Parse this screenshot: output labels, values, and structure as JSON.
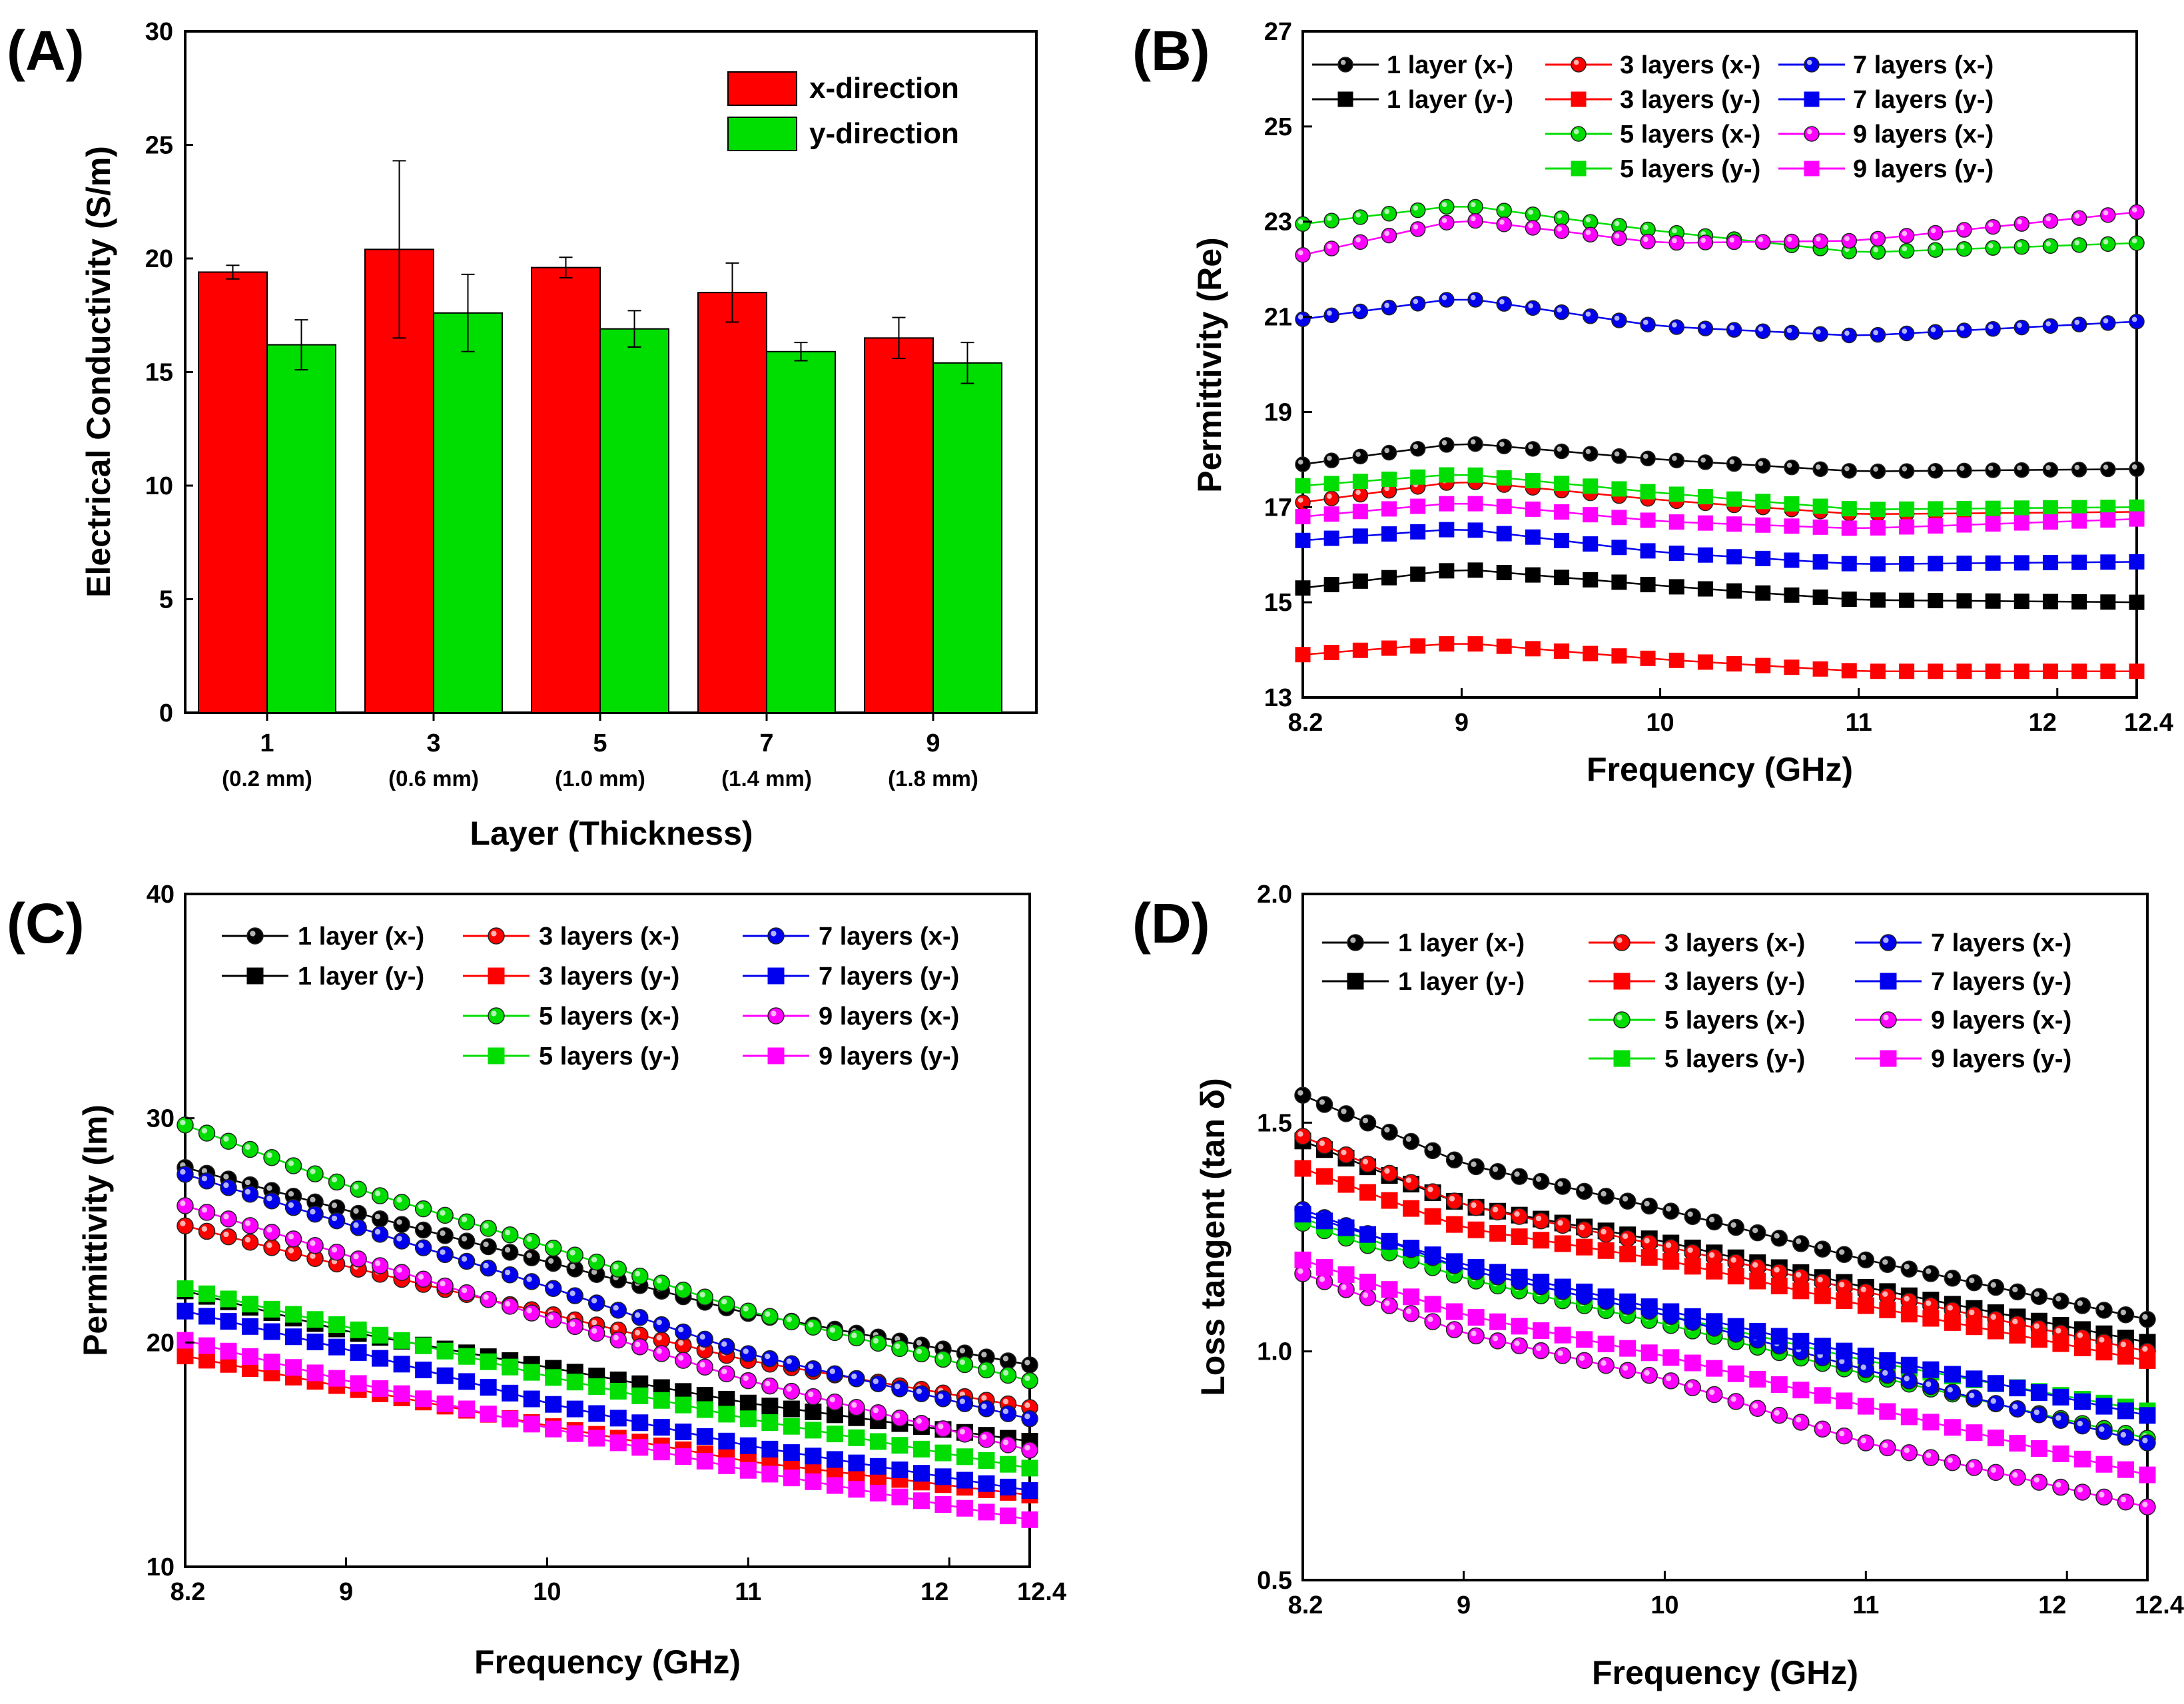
{
  "chart_data": [
    {
      "panel": "(A)",
      "type": "bar",
      "xlabel": "Layer (Thickness)",
      "ylabel": "Electrical Conductivity (S/m)",
      "ylim": [
        0,
        30
      ],
      "yticks": [
        0,
        5,
        10,
        15,
        20,
        25,
        30
      ],
      "categories": [
        "1",
        "3",
        "5",
        "7",
        "9"
      ],
      "category_sublabels": [
        "(0.2 mm)",
        "(0.6 mm)",
        "(1.0 mm)",
        "(1.4 mm)",
        "(1.8 mm)"
      ],
      "legend_position": "top-right",
      "series": [
        {
          "name": "x-direction",
          "color": "#ff0000",
          "values": [
            19.4,
            20.4,
            19.6,
            18.5,
            16.5
          ],
          "errors": [
            0.3,
            3.9,
            0.45,
            1.3,
            0.9
          ]
        },
        {
          "name": "y-direction",
          "color": "#00dd00",
          "values": [
            16.2,
            17.6,
            16.9,
            15.9,
            15.4
          ],
          "errors": [
            1.1,
            1.7,
            0.8,
            0.4,
            0.9
          ]
        }
      ]
    },
    {
      "panel": "(B)",
      "type": "line",
      "xlabel": "Frequency (GHz)",
      "ylabel": "Permittivity (Re)",
      "xlim": [
        8.2,
        12.4
      ],
      "ylim": [
        13,
        27
      ],
      "xticks": [
        "8.2",
        "9",
        "10",
        "11",
        "12",
        "12.4"
      ],
      "yticks": [
        13,
        15,
        17,
        19,
        21,
        23,
        25,
        27
      ],
      "legend_position": "top",
      "series": [
        {
          "name": "1 layer (x-)",
          "color": "#000000",
          "marker": "circle",
          "points": [
            [
              8.2,
              17.9
            ],
            [
              9.0,
              18.35
            ],
            [
              10.0,
              18.0
            ],
            [
              11.0,
              17.75
            ],
            [
              12.4,
              17.8
            ]
          ]
        },
        {
          "name": "1 layer (y-)",
          "color": "#000000",
          "marker": "square",
          "points": [
            [
              8.2,
              15.3
            ],
            [
              9.0,
              15.7
            ],
            [
              10.0,
              15.35
            ],
            [
              11.0,
              15.05
            ],
            [
              12.4,
              15.0
            ]
          ]
        },
        {
          "name": "3 layers (x-)",
          "color": "#ff0000",
          "marker": "circle",
          "points": [
            [
              8.2,
              17.1
            ],
            [
              9.0,
              17.55
            ],
            [
              10.0,
              17.15
            ],
            [
              11.0,
              16.85
            ],
            [
              12.4,
              16.9
            ]
          ]
        },
        {
          "name": "3 layers (y-)",
          "color": "#ff0000",
          "marker": "square",
          "points": [
            [
              8.2,
              13.9
            ],
            [
              9.0,
              14.15
            ],
            [
              10.0,
              13.8
            ],
            [
              11.0,
              13.55
            ],
            [
              12.4,
              13.55
            ]
          ]
        },
        {
          "name": "5 layers (x-)",
          "color": "#00dd00",
          "marker": "circle",
          "points": [
            [
              8.2,
              22.95
            ],
            [
              9.0,
              23.35
            ],
            [
              10.0,
              22.8
            ],
            [
              11.0,
              22.35
            ],
            [
              12.4,
              22.55
            ]
          ]
        },
        {
          "name": "5 layers (y-)",
          "color": "#00dd00",
          "marker": "square",
          "points": [
            [
              8.2,
              17.45
            ],
            [
              9.0,
              17.7
            ],
            [
              10.0,
              17.3
            ],
            [
              11.0,
              16.95
            ],
            [
              12.4,
              17.0
            ]
          ]
        },
        {
          "name": "7 layers (x-)",
          "color": "#0000ee",
          "marker": "circle",
          "points": [
            [
              8.2,
              20.95
            ],
            [
              9.0,
              21.4
            ],
            [
              10.0,
              20.8
            ],
            [
              11.0,
              20.6
            ],
            [
              12.4,
              20.9
            ]
          ]
        },
        {
          "name": "7 layers (y-)",
          "color": "#0000ee",
          "marker": "square",
          "points": [
            [
              8.2,
              16.3
            ],
            [
              9.0,
              16.55
            ],
            [
              10.0,
              16.05
            ],
            [
              11.0,
              15.8
            ],
            [
              12.4,
              15.85
            ]
          ]
        },
        {
          "name": "9 layers (x-)",
          "color": "#ff00ff",
          "marker": "circle",
          "points": [
            [
              8.2,
              22.3
            ],
            [
              9.0,
              23.05
            ],
            [
              10.0,
              22.55
            ],
            [
              11.0,
              22.6
            ],
            [
              12.4,
              23.2
            ]
          ]
        },
        {
          "name": "9 layers (y-)",
          "color": "#ff00ff",
          "marker": "square",
          "points": [
            [
              8.2,
              16.8
            ],
            [
              9.0,
              17.1
            ],
            [
              10.0,
              16.7
            ],
            [
              11.0,
              16.55
            ],
            [
              12.4,
              16.75
            ]
          ]
        }
      ]
    },
    {
      "panel": "(C)",
      "type": "line",
      "xlabel": "Frequency (GHz)",
      "ylabel": "Permittivity (Im)",
      "xlim": [
        8.2,
        12.4
      ],
      "ylim": [
        10,
        40
      ],
      "xticks": [
        "8.2",
        "9",
        "10",
        "11",
        "12",
        "12.4"
      ],
      "yticks": [
        10,
        20,
        30,
        40
      ],
      "legend_position": "top",
      "series": [
        {
          "name": "1 layer (x-)",
          "color": "#000000",
          "marker": "circle",
          "points": [
            [
              8.2,
              27.8
            ],
            [
              9.0,
              25.9
            ],
            [
              10.0,
              23.6
            ],
            [
              11.0,
              21.3
            ],
            [
              12.4,
              19.0
            ]
          ]
        },
        {
          "name": "1 layer (y-)",
          "color": "#000000",
          "marker": "square",
          "points": [
            [
              8.2,
              22.3
            ],
            [
              9.0,
              20.5
            ],
            [
              10.0,
              18.9
            ],
            [
              11.0,
              17.3
            ],
            [
              12.4,
              15.6
            ]
          ]
        },
        {
          "name": "3 layers (x-)",
          "color": "#ff0000",
          "marker": "circle",
          "points": [
            [
              8.2,
              25.2
            ],
            [
              9.0,
              23.4
            ],
            [
              10.0,
              21.3
            ],
            [
              11.0,
              19.2
            ],
            [
              12.4,
              17.1
            ]
          ]
        },
        {
          "name": "3 layers (y-)",
          "color": "#ff0000",
          "marker": "square",
          "points": [
            [
              8.2,
              19.4
            ],
            [
              9.0,
              18.0
            ],
            [
              10.0,
              16.3
            ],
            [
              11.0,
              14.7
            ],
            [
              12.4,
              13.2
            ]
          ]
        },
        {
          "name": "5 layers (x-)",
          "color": "#00dd00",
          "marker": "circle",
          "points": [
            [
              8.2,
              29.7
            ],
            [
              9.0,
              27.0
            ],
            [
              10.0,
              24.3
            ],
            [
              11.0,
              21.4
            ],
            [
              12.4,
              18.3
            ]
          ]
        },
        {
          "name": "5 layers (y-)",
          "color": "#00dd00",
          "marker": "square",
          "points": [
            [
              8.2,
              22.4
            ],
            [
              9.0,
              20.7
            ],
            [
              10.0,
              18.5
            ],
            [
              11.0,
              16.6
            ],
            [
              12.4,
              14.4
            ]
          ]
        },
        {
          "name": "7 layers (x-)",
          "color": "#0000ee",
          "marker": "circle",
          "points": [
            [
              8.2,
              27.5
            ],
            [
              9.0,
              25.3
            ],
            [
              10.0,
              22.5
            ],
            [
              11.0,
              19.5
            ],
            [
              12.4,
              16.6
            ]
          ]
        },
        {
          "name": "7 layers (y-)",
          "color": "#0000ee",
          "marker": "square",
          "points": [
            [
              8.2,
              21.4
            ],
            [
              9.0,
              19.7
            ],
            [
              10.0,
              17.3
            ],
            [
              11.0,
              15.4
            ],
            [
              12.4,
              13.4
            ]
          ]
        },
        {
          "name": "9 layers (x-)",
          "color": "#ff00ff",
          "marker": "circle",
          "points": [
            [
              8.2,
              26.1
            ],
            [
              9.0,
              23.9
            ],
            [
              10.0,
              21.1
            ],
            [
              11.0,
              18.3
            ],
            [
              12.4,
              15.2
            ]
          ]
        },
        {
          "name": "9 layers (y-)",
          "color": "#ff00ff",
          "marker": "square",
          "points": [
            [
              8.2,
              20.1
            ],
            [
              9.0,
              18.3
            ],
            [
              10.0,
              16.2
            ],
            [
              11.0,
              14.3
            ],
            [
              12.4,
              12.1
            ]
          ]
        }
      ]
    },
    {
      "panel": "(D)",
      "type": "line",
      "xlabel": "Frequency (GHz)",
      "ylabel": "Loss tangent (tan δ)",
      "xlim": [
        8.2,
        12.4
      ],
      "ylim": [
        0.5,
        2.0
      ],
      "xticks": [
        "8.2",
        "9",
        "10",
        "11",
        "12",
        "12.4"
      ],
      "yticks": [
        "0.5",
        "1.0",
        "1.5",
        "2.0"
      ],
      "legend_position": "top",
      "series": [
        {
          "name": "1 layer (x-)",
          "color": "#000000",
          "marker": "circle",
          "points": [
            [
              8.2,
              1.56
            ],
            [
              9.0,
              1.41
            ],
            [
              10.0,
              1.31
            ],
            [
              11.0,
              1.2
            ],
            [
              12.4,
              1.07
            ]
          ]
        },
        {
          "name": "1 layer (y-)",
          "color": "#000000",
          "marker": "square",
          "points": [
            [
              8.2,
              1.46
            ],
            [
              9.0,
              1.32
            ],
            [
              10.0,
              1.24
            ],
            [
              11.0,
              1.14
            ],
            [
              12.4,
              1.02
            ]
          ]
        },
        {
          "name": "3 layers (x-)",
          "color": "#ff0000",
          "marker": "circle",
          "points": [
            [
              8.2,
              1.47
            ],
            [
              9.0,
              1.32
            ],
            [
              10.0,
              1.23
            ],
            [
              11.0,
              1.13
            ],
            [
              12.4,
              1.0
            ]
          ]
        },
        {
          "name": "3 layers (y-)",
          "color": "#ff0000",
          "marker": "square",
          "points": [
            [
              8.2,
              1.4
            ],
            [
              9.0,
              1.27
            ],
            [
              10.0,
              1.2
            ],
            [
              11.0,
              1.1
            ],
            [
              12.4,
              0.98
            ]
          ]
        },
        {
          "name": "5 layers (x-)",
          "color": "#00dd00",
          "marker": "circle",
          "points": [
            [
              8.2,
              1.28
            ],
            [
              9.0,
              1.16
            ],
            [
              10.0,
              1.06
            ],
            [
              11.0,
              0.95
            ],
            [
              12.4,
              0.81
            ]
          ]
        },
        {
          "name": "5 layers (y-)",
          "color": "#00dd00",
          "marker": "square",
          "points": [
            [
              8.2,
              1.29
            ],
            [
              9.0,
              1.18
            ],
            [
              10.0,
              1.08
            ],
            [
              11.0,
              0.98
            ],
            [
              12.4,
              0.87
            ]
          ]
        },
        {
          "name": "7 layers (x-)",
          "color": "#0000ee",
          "marker": "circle",
          "points": [
            [
              8.2,
              1.31
            ],
            [
              9.0,
              1.18
            ],
            [
              10.0,
              1.08
            ],
            [
              11.0,
              0.96
            ],
            [
              12.4,
              0.8
            ]
          ]
        },
        {
          "name": "7 layers (y-)",
          "color": "#0000ee",
          "marker": "square",
          "points": [
            [
              8.2,
              1.3
            ],
            [
              9.0,
              1.19
            ],
            [
              10.0,
              1.09
            ],
            [
              11.0,
              0.99
            ],
            [
              12.4,
              0.86
            ]
          ]
        },
        {
          "name": "9 layers (x-)",
          "color": "#ff00ff",
          "marker": "circle",
          "points": [
            [
              8.2,
              1.17
            ],
            [
              9.0,
              1.04
            ],
            [
              10.0,
              0.94
            ],
            [
              11.0,
              0.8
            ],
            [
              12.4,
              0.66
            ]
          ]
        },
        {
          "name": "9 layers (y-)",
          "color": "#ff00ff",
          "marker": "square",
          "points": [
            [
              8.2,
              1.2
            ],
            [
              9.0,
              1.08
            ],
            [
              10.0,
              0.99
            ],
            [
              11.0,
              0.88
            ],
            [
              12.4,
              0.73
            ]
          ]
        }
      ]
    }
  ]
}
